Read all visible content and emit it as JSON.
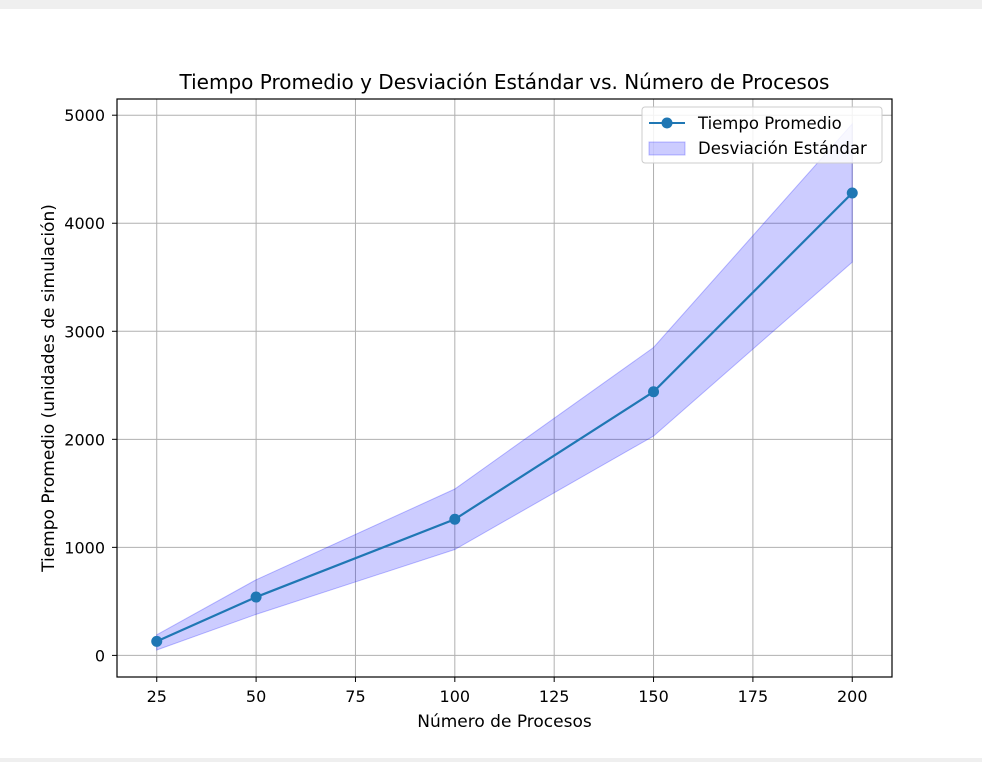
{
  "chart_data": {
    "type": "line",
    "title": "Tiempo Promedio y Desviación Estándar vs. Número de Procesos",
    "xlabel": "Número de Procesos",
    "ylabel": "Tiempo Promedio (unidades de simulación)",
    "x": [
      25,
      50,
      100,
      150,
      200
    ],
    "series": [
      {
        "name": "Tiempo Promedio",
        "type": "line",
        "marker": "circle",
        "color": "#1f77b4",
        "values": [
          130,
          540,
          1260,
          2440,
          4280
        ]
      },
      {
        "name": "Desviación Estándar",
        "type": "band",
        "color": "#0000ff",
        "lower": [
          50,
          380,
          980,
          2030,
          3640
        ],
        "upper": [
          190,
          700,
          1540,
          2850,
          4920
        ]
      }
    ],
    "xlim": [
      15,
      210
    ],
    "ylim": [
      -200,
      5150
    ],
    "xticks": [
      25,
      50,
      75,
      100,
      125,
      150,
      175,
      200
    ],
    "yticks": [
      0,
      1000,
      2000,
      3000,
      4000,
      5000
    ],
    "grid": true,
    "legend_position": "top-right"
  }
}
